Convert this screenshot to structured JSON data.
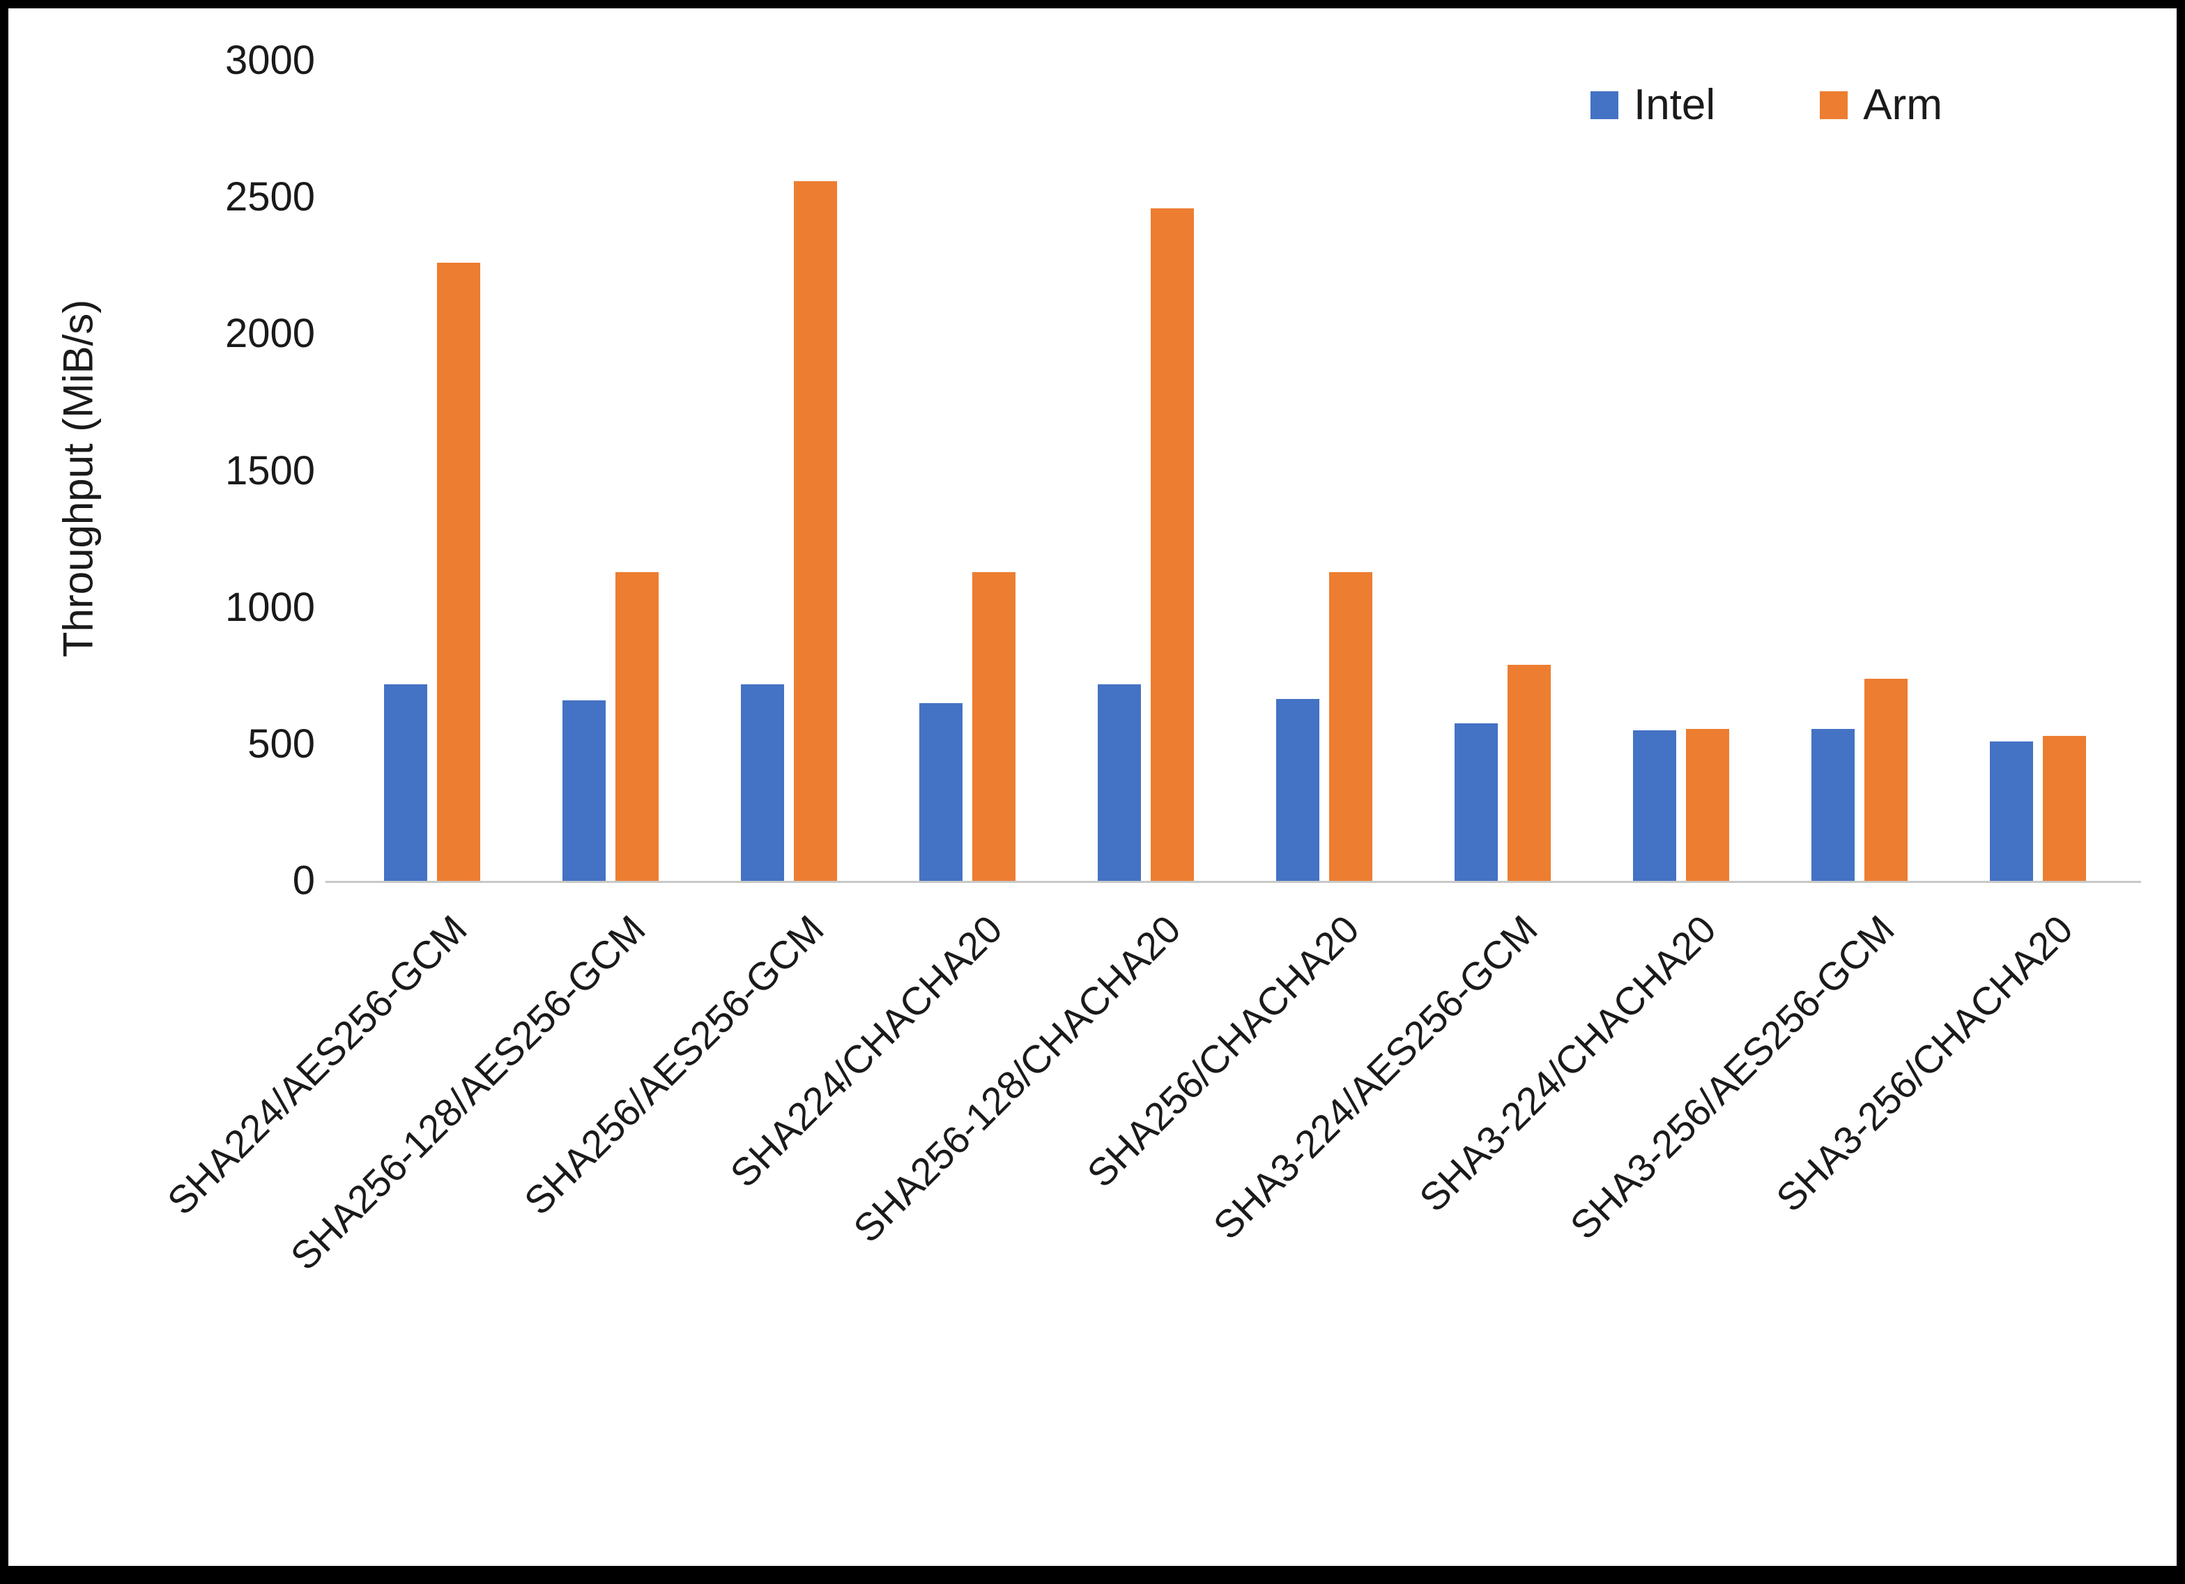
{
  "chart_data": {
    "type": "bar",
    "title": "",
    "xlabel": "",
    "ylabel": "Throughput (MiB/s)",
    "ylim": [
      0,
      3000
    ],
    "yticks": [
      0,
      500,
      1000,
      1500,
      2000,
      2500,
      3000
    ],
    "grid": false,
    "legend_position": "top-right",
    "categories": [
      "SHA224/AES256-GCM",
      "SHA256-128/AES256-GCM",
      "SHA256/AES256-GCM",
      "SHA224/CHACHA20",
      "SHA256-128/CHACHA20",
      "SHA256/CHACHA20",
      "SHA3-224/AES256-GCM",
      "SHA3-224/CHACHA20",
      "SHA3-256/AES256-GCM",
      "SHA3-256/CHACHA20"
    ],
    "series": [
      {
        "name": "Intel",
        "color": "#4472C4",
        "values": [
          720,
          660,
          720,
          650,
          720,
          665,
          575,
          550,
          555,
          510
        ]
      },
      {
        "name": "Arm",
        "color": "#ED7D31",
        "values": [
          2260,
          1130,
          2560,
          1130,
          2460,
          1130,
          790,
          555,
          740,
          530
        ]
      }
    ]
  }
}
